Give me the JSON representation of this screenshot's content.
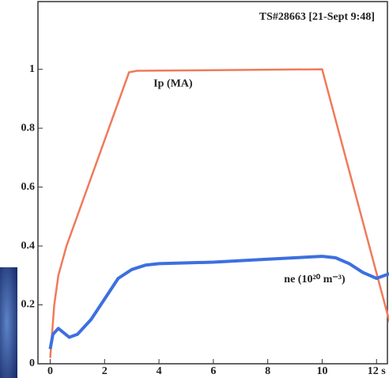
{
  "chart_data": {
    "type": "line",
    "title": "TS#28663 [21-Sept 9:48]",
    "annotations": [
      "Ip (MA)",
      "ne (10²⁰ m⁻³)"
    ],
    "series": [
      {
        "name": "Ip (MA)",
        "color": "#f07a5a",
        "x": [
          0,
          0.15,
          0.3,
          0.6,
          2.9,
          3.2,
          10,
          12.6
        ],
        "values": [
          0.02,
          0.2,
          0.3,
          0.4,
          0.99,
          0.995,
          1.0,
          0.1
        ]
      },
      {
        "name": "ne (10²⁰ m⁻³)",
        "color": "#3d6fe0",
        "x": [
          0,
          0.1,
          0.3,
          0.7,
          1,
          1.5,
          2,
          2.5,
          3,
          3.5,
          4,
          6,
          8,
          10,
          10.5,
          11,
          11.5,
          12,
          12.3,
          12.6
        ],
        "values": [
          0.05,
          0.1,
          0.12,
          0.09,
          0.1,
          0.15,
          0.22,
          0.29,
          0.32,
          0.335,
          0.34,
          0.345,
          0.355,
          0.365,
          0.36,
          0.34,
          0.31,
          0.29,
          0.3,
          0.31
        ]
      }
    ],
    "xlim": [
      -0.45,
      12.4
    ],
    "xticks": [
      0,
      2,
      4,
      6,
      8,
      10,
      {
        "value": 12,
        "label": "12 s"
      }
    ],
    "ylim": [
      0,
      1.23
    ],
    "yticks": [
      0,
      0.2,
      0.4,
      0.6,
      0.8,
      1
    ]
  }
}
